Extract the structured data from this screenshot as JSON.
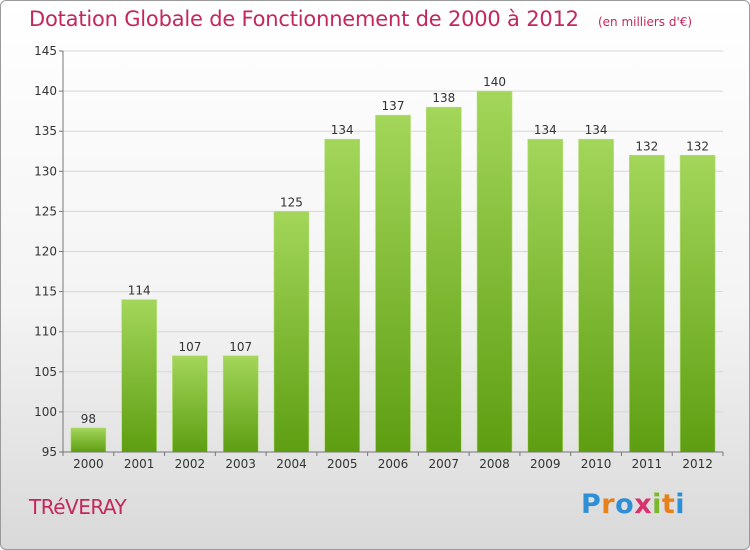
{
  "title": "Dotation Globale de Fonctionnement de 2000 à 2012",
  "subtitle": "(en milliers d'€)",
  "commune": "TRéVERAY",
  "logo": {
    "letters": [
      "P",
      "r",
      "o",
      "x",
      "i",
      "t",
      "i"
    ],
    "colors": [
      "#2f8fd6",
      "#e8811a",
      "#2f8fd6",
      "#d8336f",
      "#7ab82a",
      "#e8811a",
      "#2f8fd6"
    ]
  },
  "colors": {
    "bar_top": "#a3d65a",
    "bar_bottom": "#5e9e12",
    "grid": "#d6d6d6",
    "axis": "#777777"
  },
  "chart_data": {
    "type": "bar",
    "categories": [
      "2000",
      "2001",
      "2002",
      "2003",
      "2004",
      "2005",
      "2006",
      "2007",
      "2008",
      "2009",
      "2010",
      "2011",
      "2012"
    ],
    "values": [
      98,
      114,
      107,
      107,
      125,
      134,
      137,
      138,
      140,
      134,
      134,
      132,
      132
    ],
    "title": "Dotation Globale de Fonctionnement de 2000 à 2012",
    "subtitle": "(en milliers d'€)",
    "ylim": [
      95,
      145
    ],
    "yticks": [
      95,
      100,
      105,
      110,
      115,
      120,
      125,
      130,
      135,
      140,
      145
    ],
    "grid": true
  }
}
